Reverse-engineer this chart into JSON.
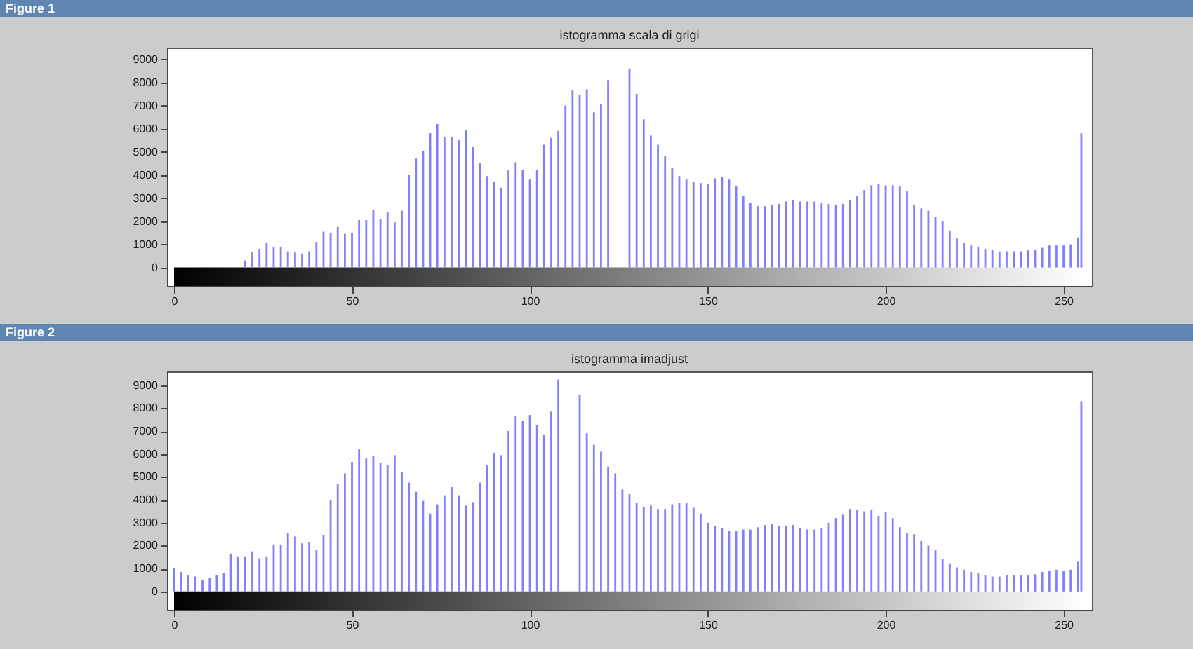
{
  "chart_data": [
    {
      "type": "bar",
      "title": "istogramma scala di grigi",
      "annotations": [
        "Figure 1"
      ],
      "x": [
        0,
        2,
        4,
        6,
        8,
        10,
        12,
        14,
        16,
        18,
        20,
        22,
        24,
        26,
        28,
        30,
        32,
        34,
        36,
        38,
        40,
        42,
        44,
        46,
        48,
        50,
        52,
        54,
        56,
        58,
        60,
        62,
        64,
        66,
        68,
        70,
        72,
        74,
        76,
        78,
        80,
        82,
        84,
        86,
        88,
        90,
        92,
        94,
        96,
        98,
        100,
        102,
        104,
        106,
        108,
        110,
        112,
        114,
        116,
        118,
        120,
        122,
        124,
        126,
        128,
        130,
        132,
        134,
        136,
        138,
        140,
        142,
        144,
        146,
        148,
        150,
        152,
        154,
        156,
        158,
        160,
        162,
        164,
        166,
        168,
        170,
        172,
        174,
        176,
        178,
        180,
        182,
        184,
        186,
        188,
        190,
        192,
        194,
        196,
        198,
        200,
        202,
        204,
        206,
        208,
        210,
        212,
        214,
        216,
        218,
        220,
        222,
        224,
        226,
        228,
        230,
        232,
        234,
        236,
        238,
        240,
        242,
        244,
        246,
        248,
        250,
        252,
        254,
        255
      ],
      "series": [
        {
          "color": "#8080ff",
          "values": [
            0,
            0,
            0,
            0,
            0,
            0,
            0,
            0,
            0,
            0,
            300,
            650,
            800,
            1050,
            900,
            900,
            700,
            650,
            600,
            700,
            1100,
            1550,
            1500,
            1750,
            1450,
            1500,
            2050,
            2050,
            2500,
            2100,
            2400,
            1950,
            2450,
            4000,
            4700,
            5050,
            5800,
            6200,
            5650,
            5650,
            5500,
            5950,
            5200,
            4500,
            3950,
            3700,
            3450,
            4200,
            4550,
            4200,
            3800,
            4200,
            5300,
            5600,
            5900,
            7000,
            7650,
            7450,
            7700,
            6700,
            7050,
            8100,
            null,
            null,
            8600,
            7500,
            6400,
            5700,
            5300,
            4800,
            4300,
            3950,
            3800,
            3700,
            3650,
            3600,
            3850,
            3900,
            3800,
            3500,
            3100,
            2800,
            2650,
            2650,
            2700,
            2750,
            2850,
            2900,
            2850,
            2850,
            2850,
            2800,
            2750,
            2700,
            2750,
            2900,
            3100,
            3350,
            3550,
            3600,
            3550,
            3550,
            3500,
            3300,
            2700,
            2550,
            2450,
            2200,
            2000,
            1600,
            1250,
            1050,
            950,
            900,
            800,
            750,
            700,
            700,
            700,
            700,
            750,
            750,
            850,
            950,
            950,
            950,
            1000,
            1300,
            5800
          ]
        }
      ],
      "xlim": [
        0,
        256
      ],
      "ylim": [
        -800,
        9500
      ],
      "xticks": [
        0,
        50,
        100,
        150,
        200,
        250
      ],
      "yticks": [
        0,
        1000,
        2000,
        3000,
        4000,
        5000,
        6000,
        7000,
        8000,
        9000
      ]
    },
    {
      "type": "bar",
      "title": "istogramma imadjust",
      "annotations": [
        "Figure 2"
      ],
      "x": [
        0,
        2,
        4,
        6,
        8,
        10,
        12,
        14,
        16,
        18,
        20,
        22,
        24,
        26,
        28,
        30,
        32,
        34,
        36,
        38,
        40,
        42,
        44,
        46,
        48,
        50,
        52,
        54,
        56,
        58,
        60,
        62,
        64,
        66,
        68,
        70,
        72,
        74,
        76,
        78,
        80,
        82,
        84,
        86,
        88,
        90,
        92,
        94,
        96,
        98,
        100,
        102,
        104,
        106,
        108,
        110,
        112,
        114,
        116,
        118,
        120,
        122,
        124,
        126,
        128,
        130,
        132,
        134,
        136,
        138,
        140,
        142,
        144,
        146,
        148,
        150,
        152,
        154,
        156,
        158,
        160,
        162,
        164,
        166,
        168,
        170,
        172,
        174,
        176,
        178,
        180,
        182,
        184,
        186,
        188,
        190,
        192,
        194,
        196,
        198,
        200,
        202,
        204,
        206,
        208,
        210,
        212,
        214,
        216,
        218,
        220,
        222,
        224,
        226,
        228,
        230,
        232,
        234,
        236,
        238,
        240,
        242,
        244,
        246,
        248,
        250,
        252,
        254,
        255
      ],
      "series": [
        {
          "color": "#8080ff",
          "values": [
            1000,
            850,
            700,
            650,
            500,
            600,
            700,
            800,
            1650,
            1500,
            1500,
            1750,
            1450,
            1500,
            2050,
            2050,
            2550,
            2400,
            2100,
            2150,
            1800,
            2450,
            4000,
            4700,
            5150,
            5650,
            6200,
            5800,
            5900,
            5600,
            5500,
            5950,
            5200,
            4750,
            4350,
            3950,
            3400,
            3800,
            4200,
            4550,
            4200,
            3750,
            3900,
            4750,
            5500,
            6050,
            5950,
            7000,
            7650,
            7450,
            7700,
            7250,
            6850,
            7850,
            9250,
            null,
            null,
            8600,
            6900,
            6400,
            6100,
            5450,
            5150,
            4450,
            4250,
            3850,
            3700,
            3750,
            3600,
            3600,
            3800,
            3850,
            3850,
            3650,
            3400,
            3000,
            2850,
            2750,
            2650,
            2650,
            2700,
            2700,
            2800,
            2900,
            2950,
            2850,
            2850,
            2900,
            2750,
            2700,
            2700,
            2750,
            3000,
            3200,
            3350,
            3600,
            3550,
            3500,
            3550,
            3300,
            3450,
            3200,
            2800,
            2550,
            2500,
            2200,
            2000,
            1800,
            1400,
            1200,
            1050,
            950,
            850,
            800,
            700,
            650,
            650,
            700,
            700,
            700,
            700,
            750,
            850,
            900,
            950,
            900,
            950,
            1300,
            8300
          ]
        }
      ],
      "xlim": [
        0,
        256
      ],
      "ylim": [
        -800,
        9600
      ],
      "xticks": [
        0,
        50,
        100,
        150,
        200,
        250
      ],
      "yticks": [
        0,
        1000,
        2000,
        3000,
        4000,
        5000,
        6000,
        7000,
        8000,
        9000
      ]
    }
  ]
}
